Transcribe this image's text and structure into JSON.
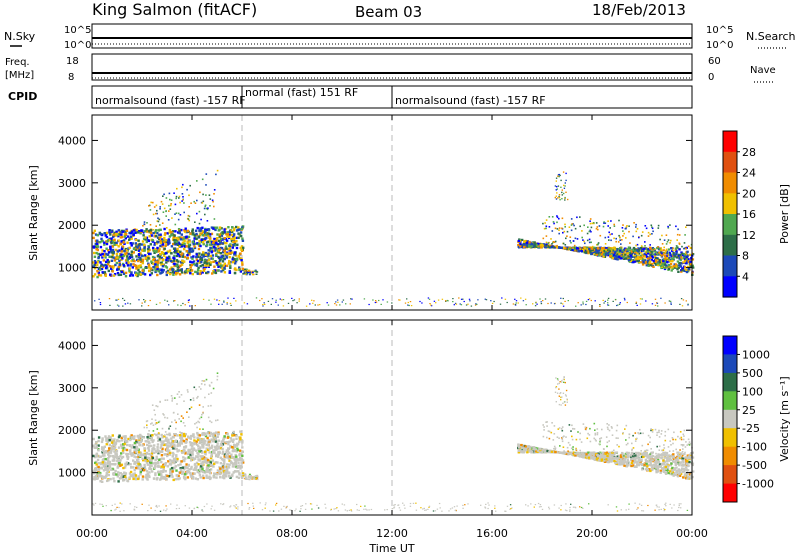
{
  "header": {
    "station": "King Salmon (fitACF)",
    "beam": "Beam 03",
    "date": "18/Feb/2013"
  },
  "panels": {
    "nsky": {
      "label": "N.Sky",
      "left_ticks": [
        "10^5",
        "10^0"
      ],
      "right_label": "N.Search",
      "right_ticks": [
        "10^5",
        "10^0"
      ]
    },
    "freq": {
      "label_line1": "Freq.",
      "label_line2": "[MHz]",
      "left_ticks": [
        "18",
        "8"
      ],
      "right_label": "Nave",
      "right_ticks": [
        "60",
        "0"
      ]
    },
    "cpid": {
      "label": "CPID",
      "segments": [
        {
          "text": "normalsound (fast) -157 RF",
          "start_h": 0,
          "end_h": 6
        },
        {
          "text": "normal (fast) 151 RF",
          "start_h": 6,
          "end_h": 12
        },
        {
          "text": "normalsound (fast) -157 RF",
          "start_h": 12,
          "end_h": 24
        }
      ]
    }
  },
  "colors": {
    "power": [
      "#0000ff",
      "#1c49b8",
      "#2d6e48",
      "#50a850",
      "#f0c000",
      "#f08c00",
      "#e05010",
      "#ff0000"
    ],
    "velocity": [
      "#0000ff",
      "#1c49b8",
      "#2d6e48",
      "#60c040",
      "#c8c8c0",
      "#f0c000",
      "#f08c00",
      "#e05010",
      "#ff0000"
    ]
  },
  "chart_data": [
    {
      "type": "heatmap",
      "name": "Power",
      "ylabel": "Slant Range [km]",
      "x_range_hours": [
        0,
        24
      ],
      "ylim": [
        0,
        4600
      ],
      "yticks": [
        1000,
        2000,
        3000,
        4000
      ],
      "colorbar": {
        "label": "Power [dB]",
        "ticks": [
          "4",
          "8",
          "12",
          "16",
          "20",
          "24",
          "28"
        ]
      },
      "dashed_lines_h": [
        6,
        12
      ]
    },
    {
      "type": "heatmap",
      "name": "Velocity",
      "ylabel": "Slant Range [km]",
      "x_range_hours": [
        0,
        24
      ],
      "ylim": [
        0,
        4600
      ],
      "yticks": [
        1000,
        2000,
        3000,
        4000
      ],
      "colorbar": {
        "label": "Velocity [m s⁻¹]",
        "ticks": [
          "1000",
          "500",
          "100",
          "25",
          "-25",
          "-100",
          "-500",
          "-1000"
        ]
      },
      "dashed_lines_h": [
        6,
        12
      ]
    }
  ],
  "xaxis": {
    "ticks": [
      "00:00",
      "04:00",
      "08:00",
      "12:00",
      "16:00",
      "20:00",
      "00:00"
    ],
    "label": "Time UT"
  }
}
